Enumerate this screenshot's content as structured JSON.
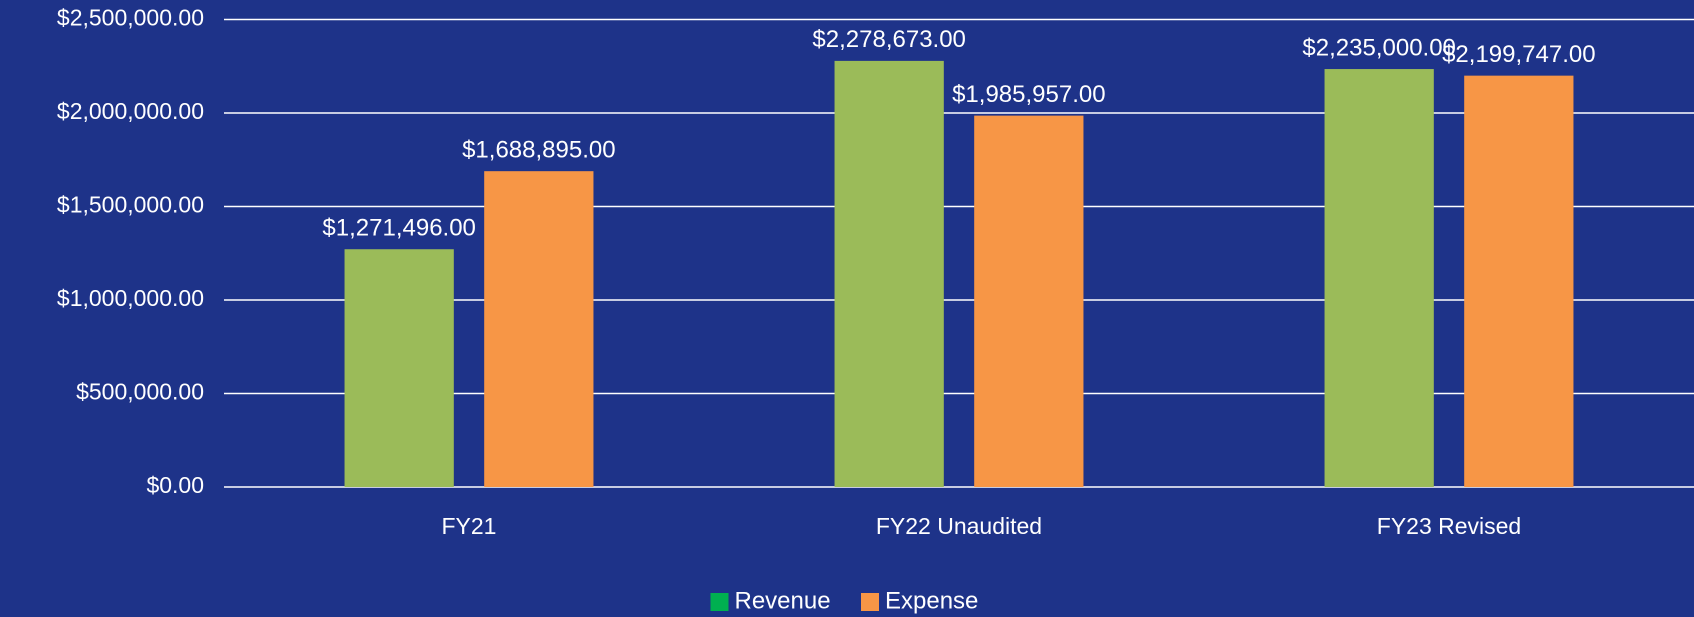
{
  "chart_data": {
    "type": "bar",
    "categories": [
      "FY21",
      "FY22 Unaudited",
      "FY23 Revised"
    ],
    "series": [
      {
        "name": "Revenue",
        "color": "#9bbb59",
        "legend_color": "#00b050",
        "values": [
          1271496,
          2278673,
          2235000
        ],
        "value_labels": [
          "$1,271,496.00",
          "$2,278,673.00",
          "$2,235,000.00"
        ]
      },
      {
        "name": "Expense",
        "color": "#f79646",
        "legend_color": "#f79646",
        "values": [
          1688895,
          1985957,
          2199747
        ],
        "value_labels": [
          "$1,688,895.00",
          "$1,985,957.00",
          "$2,199,747.00"
        ]
      }
    ],
    "ylim": [
      0,
      2500000
    ],
    "yticks": [
      {
        "value": 0,
        "label": "$0.00"
      },
      {
        "value": 500000,
        "label": "$500,000.00"
      },
      {
        "value": 1000000,
        "label": "$1,000,000.00"
      },
      {
        "value": 1500000,
        "label": "$1,500,000.00"
      },
      {
        "value": 2000000,
        "label": "$2,000,000.00"
      },
      {
        "value": 2500000,
        "label": "$2,500,000.00"
      }
    ],
    "grid": true,
    "legend": "bottom"
  }
}
